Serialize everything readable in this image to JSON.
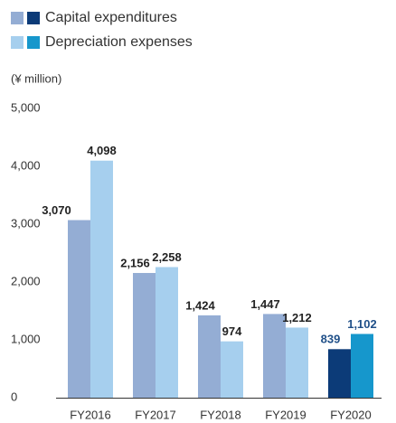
{
  "chart_data": {
    "type": "bar",
    "unit_label": "(¥ million)",
    "categories": [
      "FY2016",
      "FY2017",
      "FY2018",
      "FY2019",
      "FY2020"
    ],
    "series": [
      {
        "name": "Capital expenditures",
        "colors": [
          "#94add4",
          "#94add4",
          "#94add4",
          "#94add4",
          "#0c3b78"
        ],
        "values": [
          3070,
          2156,
          1424,
          1447,
          839
        ],
        "value_labels": [
          "3,070",
          "2,156",
          "1,424",
          "1,447",
          "839"
        ],
        "label_colors": [
          "#222222",
          "#222222",
          "#222222",
          "#222222",
          "#1f4f88"
        ]
      },
      {
        "name": "Depreciation expenses",
        "colors": [
          "#a6cfee",
          "#a6cfee",
          "#a6cfee",
          "#a6cfee",
          "#1697cc"
        ],
        "values": [
          4098,
          2258,
          974,
          1212,
          1102
        ],
        "value_labels": [
          "4,098",
          "2,258",
          "974",
          "1,212",
          "1,102"
        ],
        "label_colors": [
          "#222222",
          "#222222",
          "#222222",
          "#222222",
          "#1f4f88"
        ]
      }
    ],
    "ylim": [
      0,
      5000
    ],
    "yticks": [
      0,
      {
        "value": 1000,
        "label": "1,000"
      },
      {
        "value": 2000,
        "label": "2,000"
      },
      {
        "value": 3000,
        "label": "3,000"
      },
      {
        "value": 4000,
        "label": "4,000"
      },
      {
        "value": 5000,
        "label": "5,000"
      }
    ]
  }
}
